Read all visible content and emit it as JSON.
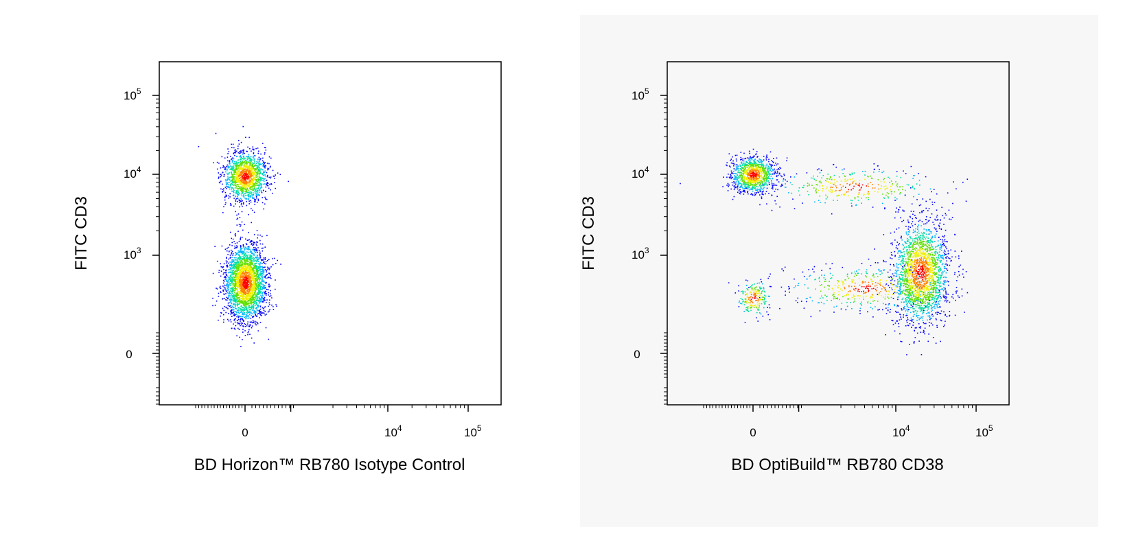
{
  "chart_data": [
    {
      "type": "scatter",
      "subtype": "flow-cytometry-pseudocolor-density",
      "xlabel": "BD Horizon™ RB780 Isotype Control",
      "ylabel": "FITC CD3",
      "x_scale": "biexponential",
      "y_scale": "biexponential",
      "x_ticks": [
        {
          "value": 0,
          "label": "0",
          "exp": ""
        },
        {
          "value": 10000,
          "label": "10",
          "exp": "4"
        },
        {
          "value": 100000,
          "label": "10",
          "exp": "5"
        }
      ],
      "y_ticks": [
        {
          "value": 0,
          "label": "0",
          "exp": ""
        },
        {
          "value": 1000,
          "label": "10",
          "exp": "3"
        },
        {
          "value": 10000,
          "label": "10",
          "exp": "4"
        },
        {
          "value": 100000,
          "label": "10",
          "exp": "5"
        }
      ],
      "populations": [
        {
          "x_center": 0,
          "y_center": 9500,
          "relative_size": 0.35
        },
        {
          "x_center": 0,
          "y_center": 150,
          "relative_size": 0.65
        }
      ],
      "density_colors": [
        "#0000ff",
        "#00b4ff",
        "#00e0a0",
        "#60e000",
        "#f0f000",
        "#ff8000",
        "#ff0000"
      ]
    },
    {
      "type": "scatter",
      "subtype": "flow-cytometry-pseudocolor-density",
      "xlabel": "BD OptiBuild™ RB780 CD38",
      "ylabel": "FITC CD3",
      "x_scale": "biexponential",
      "y_scale": "biexponential",
      "x_ticks": [
        {
          "value": 0,
          "label": "0",
          "exp": ""
        },
        {
          "value": 10000,
          "label": "10",
          "exp": "4"
        },
        {
          "value": 100000,
          "label": "10",
          "exp": "5"
        }
      ],
      "y_ticks": [
        {
          "value": 0,
          "label": "0",
          "exp": ""
        },
        {
          "value": 1000,
          "label": "10",
          "exp": "3"
        },
        {
          "value": 10000,
          "label": "10",
          "exp": "4"
        },
        {
          "value": 100000,
          "label": "10",
          "exp": "5"
        }
      ],
      "populations": [
        {
          "x_center": 0,
          "y_center": 10000,
          "relative_size": 0.25
        },
        {
          "x_center": 3000,
          "y_center": 7000,
          "relative_size": 0.08
        },
        {
          "x_center": 20000,
          "y_center": 300,
          "relative_size": 0.5
        },
        {
          "x_center": 4000,
          "y_center": 100,
          "relative_size": 0.1
        },
        {
          "x_center": 0,
          "y_center": 50,
          "relative_size": 0.05
        }
      ],
      "density_colors": [
        "#0000ff",
        "#00b4ff",
        "#00e0a0",
        "#60e000",
        "#f0f000",
        "#ff8000",
        "#ff0000"
      ]
    }
  ]
}
